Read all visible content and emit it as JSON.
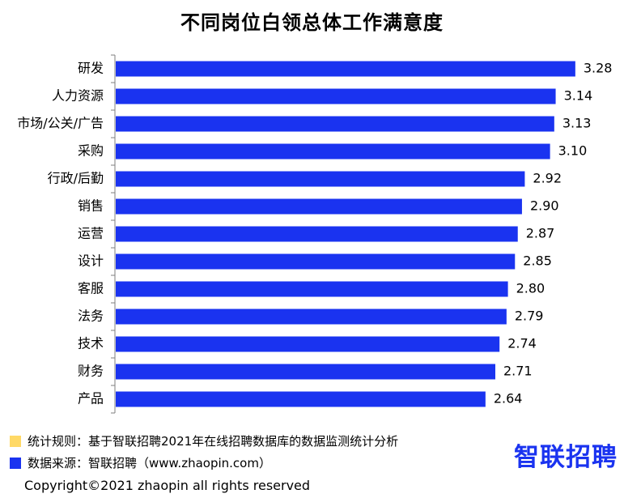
{
  "title": "不同岗位白领总体工作满意度",
  "chart_data": {
    "type": "bar",
    "orientation": "horizontal",
    "title": "不同岗位白领总体工作满意度",
    "categories": [
      "研发",
      "人力资源",
      "市场/公关/广告",
      "采购",
      "行政/后勤",
      "销售",
      "运营",
      "设计",
      "客服",
      "法务",
      "技术",
      "财务",
      "产品"
    ],
    "values": [
      3.28,
      3.14,
      3.13,
      3.1,
      2.92,
      2.9,
      2.87,
      2.85,
      2.8,
      2.79,
      2.74,
      2.71,
      2.64
    ],
    "value_labels": [
      "3.28",
      "3.14",
      "3.13",
      "3.10",
      "2.92",
      "2.90",
      "2.87",
      "2.85",
      "2.80",
      "2.79",
      "2.74",
      "2.71",
      "2.64"
    ],
    "xlim": [
      0,
      3.5
    ],
    "bar_color": "#1a33f0",
    "grid": false,
    "legend": "none"
  },
  "footer": {
    "rule_label": "统计规则：基于智联招聘2021年在线招聘数据库的数据监测统计分析",
    "rule_color": "#ffd966",
    "source_label": "数据来源：智联招聘（www.zhaopin.com）",
    "source_color": "#1a33f0",
    "logo_text": "智联招聘",
    "logo_color": "#1a33f0",
    "copyright": "Copyright©2021 zhaopin all rights reserved"
  }
}
